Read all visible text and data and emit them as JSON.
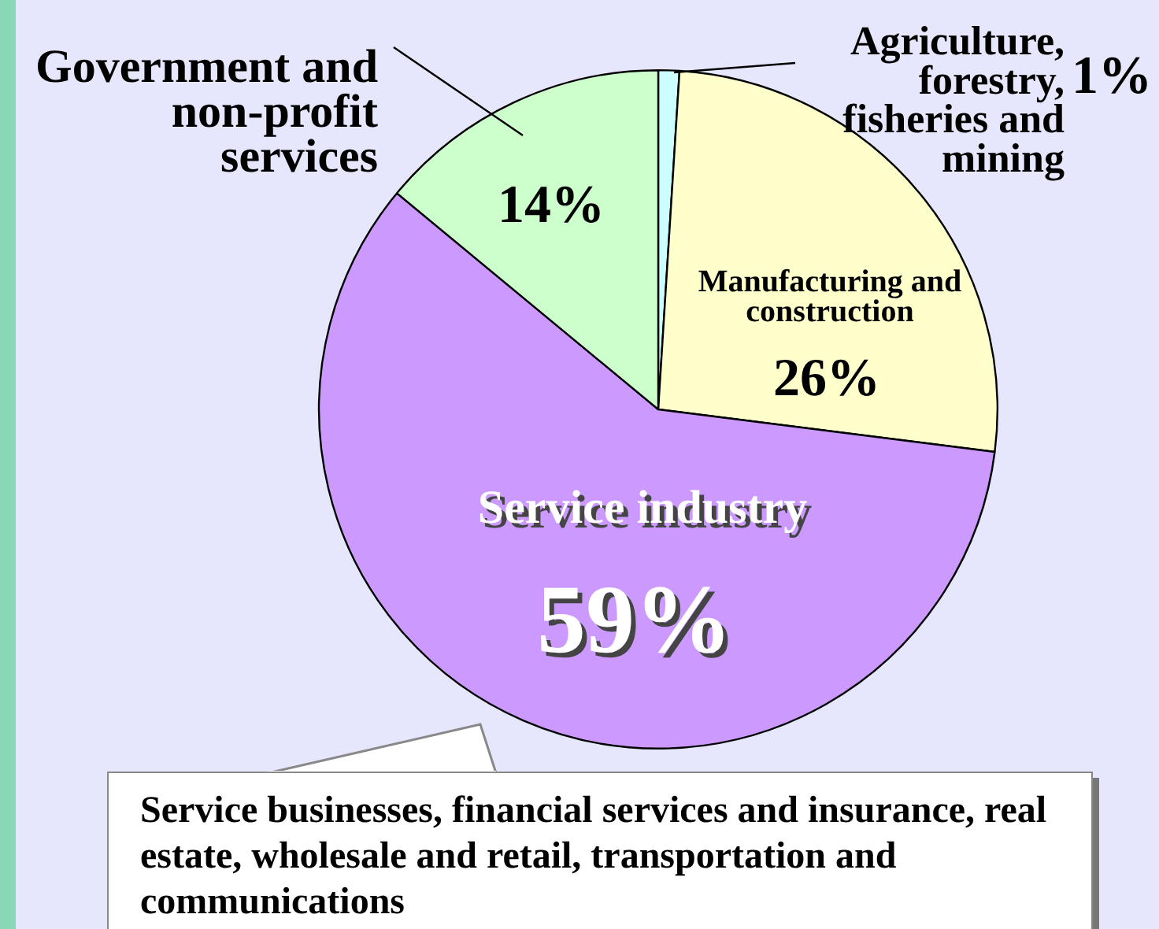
{
  "chart_data": {
    "type": "pie",
    "categories": [
      "Agriculture, forestry, fisheries and mining",
      "Manufacturing and construction",
      "Service industry",
      "Government and non-profit services"
    ],
    "values": [
      1,
      26,
      59,
      14
    ],
    "colors": [
      "#ccffff",
      "#ffffcc",
      "#cc99ff",
      "#ccffcc"
    ],
    "value_labels": [
      "1%",
      "26%",
      "59%",
      "14%"
    ],
    "legend": false,
    "annotations": [
      "Service businesses, financial services and insurance, real estate, wholesale and retail, transportation and communications"
    ]
  }
}
